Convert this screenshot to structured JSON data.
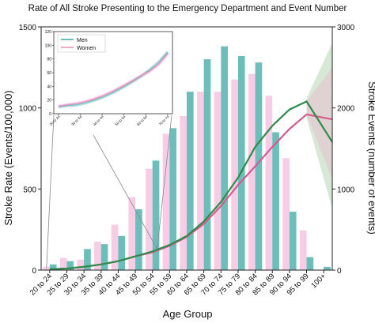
{
  "chart_data": {
    "type": "bar",
    "title": "Rate of All Stroke Presenting to the Emergency Department and Event Number",
    "xlabel": "Age Group",
    "ylabel": "Stroke Rate (Events/100,000)",
    "y2label": "Stroke Events (number of events)",
    "ylim": [
      0,
      1500
    ],
    "y2lim": [
      0,
      3000
    ],
    "yticks": [
      "0",
      "500",
      "1000",
      "1500"
    ],
    "y2ticks": [
      "0",
      "1000",
      "2000",
      "3000"
    ],
    "categories": [
      "20 to 24",
      "25 to 29",
      "30 to 34",
      "35 to 39",
      "40 to 44",
      "45 to 49",
      "50 to 54",
      "55 to 59",
      "60 to 64",
      "65 to 69",
      "70 to 74",
      "75 to 79",
      "80 to 84",
      "85 to 89",
      "90 to 94",
      "95 to 99",
      "100+"
    ],
    "colors": {
      "men": "#6dbdbb",
      "women": "#f7cde6",
      "men_line": "#2e8b4a",
      "women_line": "#d45a8f"
    },
    "bar_series": [
      {
        "name": "Women",
        "axis": "right",
        "values": [
          40,
          150,
          130,
          350,
          560,
          900,
          1250,
          1680,
          1900,
          2200,
          2200,
          2350,
          2420,
          2150,
          1380,
          490,
          0
        ]
      },
      {
        "name": "Men",
        "axis": "right",
        "values": [
          70,
          110,
          260,
          320,
          420,
          750,
          1350,
          1750,
          2200,
          2600,
          2760,
          2640,
          2560,
          1700,
          720,
          160,
          40
        ]
      }
    ],
    "line_series": [
      {
        "name": "Men",
        "axis": "left",
        "values": [
          5,
          10,
          20,
          35,
          55,
          85,
          115,
          155,
          210,
          300,
          420,
          570,
          760,
          890,
          990,
          1040,
          null
        ]
      },
      {
        "name": "Women",
        "axis": "left",
        "values": [
          5,
          10,
          20,
          35,
          55,
          85,
          110,
          150,
          205,
          285,
          395,
          525,
          640,
          760,
          870,
          960,
          null
        ]
      }
    ],
    "line_tail": {
      "men_100plus": 790,
      "women_100plus": 930
    },
    "inset": {
      "legend": [
        "Men",
        "Women"
      ],
      "xticks": [
        "20 to 24",
        "30 to 34",
        "40 to 44",
        "50 to 54",
        "60 to 64",
        "70 to 74"
      ],
      "yticks": [
        "0",
        "20",
        "40",
        "60",
        "80",
        "100",
        "120"
      ],
      "ylim": [
        0,
        120
      ],
      "men": [
        10,
        12,
        13,
        16,
        20,
        25,
        31,
        38,
        46,
        54,
        64,
        75,
        90
      ],
      "women": [
        11,
        13,
        15,
        18,
        22,
        27,
        33,
        40,
        47,
        55,
        62,
        72,
        88
      ]
    }
  }
}
